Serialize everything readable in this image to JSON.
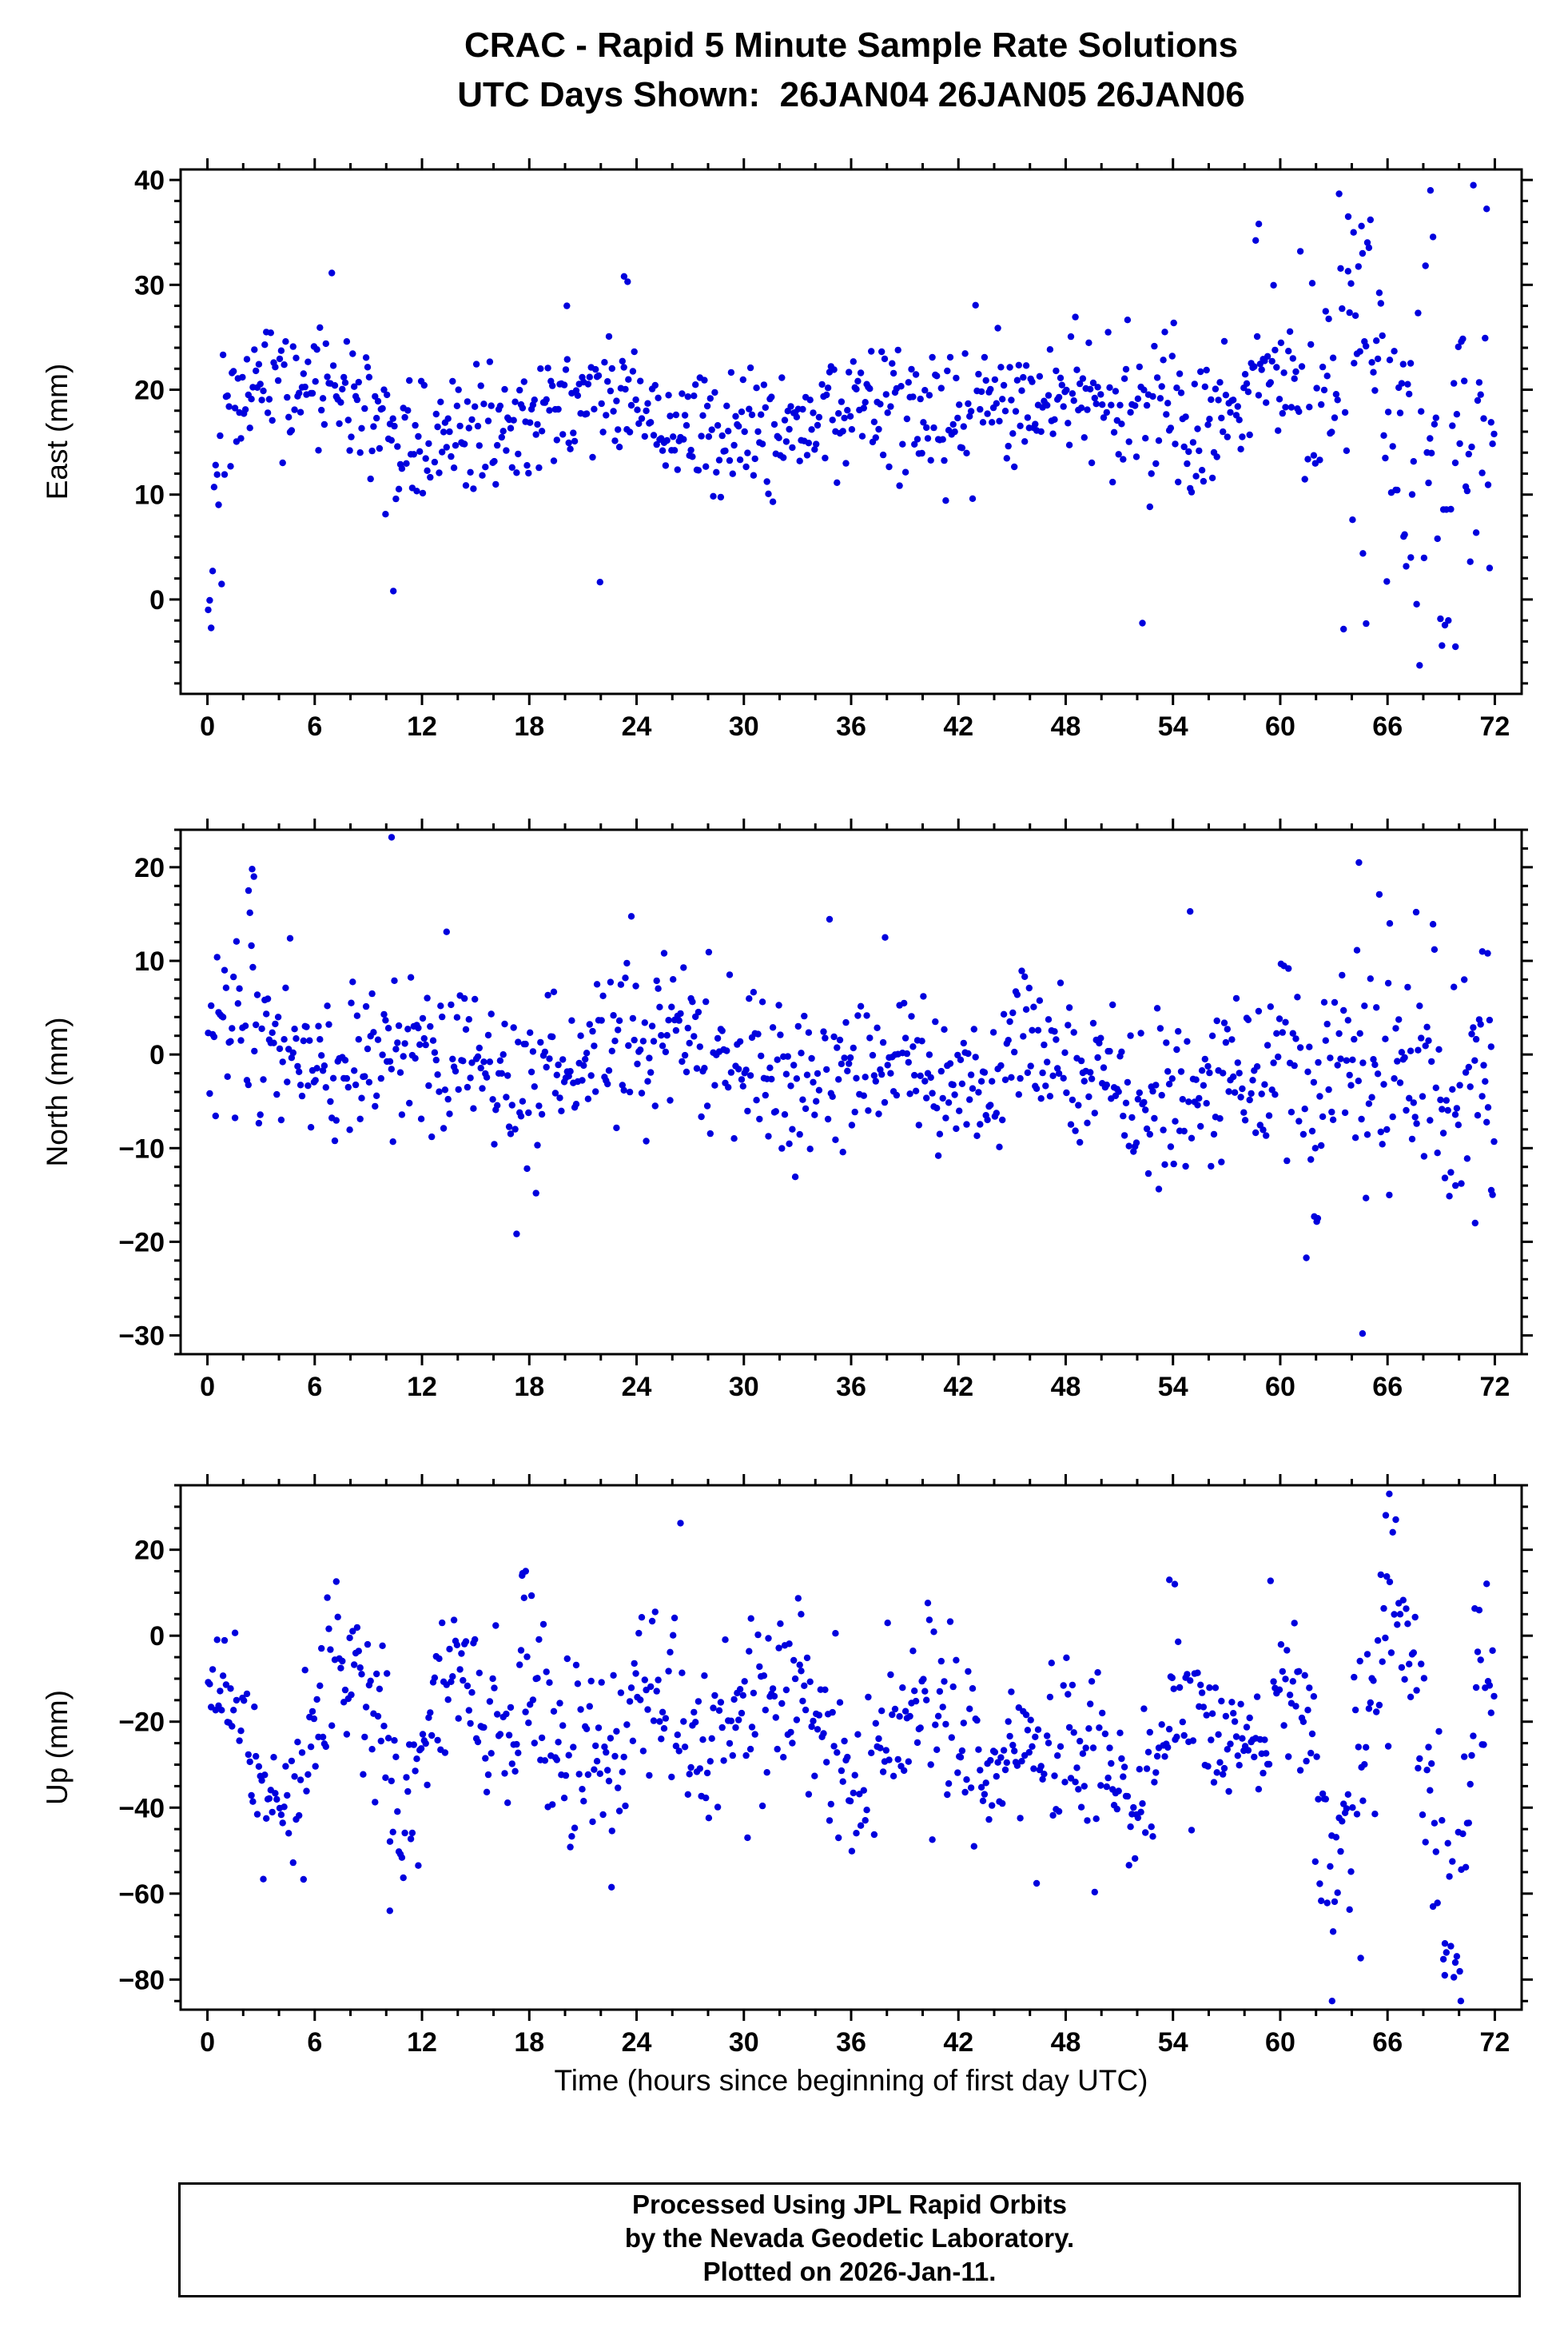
{
  "title": {
    "line1": "CRAC - Rapid 5 Minute Sample Rate Solutions",
    "line2": "UTC Days Shown:  26JAN04 26JAN05 26JAN06"
  },
  "footer": {
    "lines": [
      "Processed Using JPL Rapid Orbits",
      "by the Nevada Geodetic Laboratory.",
      "Plotted on 2026-Jan-11."
    ]
  },
  "chart_data": {
    "type": "scatter",
    "station": "CRAC",
    "utc_days_shown": [
      "26JAN04",
      "26JAN05",
      "26JAN06"
    ],
    "marker": {
      "shape": "circle",
      "color": "#0000dd",
      "radius_px": 4.2
    },
    "x_axis": {
      "label": "Time (hours since beginning of first day UTC)",
      "lim": [
        -1.5,
        73.5
      ],
      "ticks": [
        0,
        6,
        12,
        18,
        24,
        30,
        36,
        42,
        48,
        54,
        60,
        66,
        72
      ],
      "minor_step": 2
    },
    "panels": [
      {
        "id": "east",
        "ylabel": "East (mm)",
        "ylim": [
          -9,
          41
        ],
        "yticks": [
          0,
          10,
          20,
          30,
          40
        ],
        "y_minor_step": 2,
        "seed": 101,
        "n": 864,
        "mean_anchors": [
          [
            0,
            1
          ],
          [
            0.4,
            6
          ],
          [
            0.9,
            13
          ],
          [
            1.6,
            20
          ],
          [
            2.5,
            22
          ],
          [
            4,
            21
          ],
          [
            6,
            21
          ],
          [
            7,
            23
          ],
          [
            8,
            19
          ],
          [
            10,
            15
          ],
          [
            12,
            16
          ],
          [
            14,
            17
          ],
          [
            16,
            16
          ],
          [
            18,
            17
          ],
          [
            20,
            18
          ],
          [
            23,
            19
          ],
          [
            26,
            16
          ],
          [
            28,
            17
          ],
          [
            30,
            17
          ],
          [
            33,
            16
          ],
          [
            36,
            19
          ],
          [
            39,
            17
          ],
          [
            42,
            18
          ],
          [
            45,
            18
          ],
          [
            48,
            19
          ],
          [
            51,
            19
          ],
          [
            54,
            17
          ],
          [
            56,
            16
          ],
          [
            58,
            20
          ],
          [
            59,
            23
          ],
          [
            60,
            20
          ],
          [
            61,
            22
          ],
          [
            62,
            19
          ],
          [
            63,
            21
          ],
          [
            64,
            23
          ],
          [
            65,
            25
          ],
          [
            66,
            19
          ],
          [
            67,
            14
          ],
          [
            68,
            17
          ],
          [
            69,
            11
          ],
          [
            70,
            15
          ],
          [
            71,
            19
          ],
          [
            72,
            17
          ]
        ],
        "sigma_anchors": [
          [
            0,
            3.5
          ],
          [
            1,
            4.5
          ],
          [
            2,
            3.5
          ],
          [
            10,
            3
          ],
          [
            56,
            3.2
          ],
          [
            58,
            4
          ],
          [
            60,
            3.5
          ],
          [
            62,
            4.5
          ],
          [
            63,
            6
          ],
          [
            64,
            8
          ],
          [
            65,
            10
          ],
          [
            67,
            9
          ],
          [
            68,
            11
          ],
          [
            70,
            9
          ],
          [
            72,
            7
          ]
        ],
        "outliers": [
          [
            10.4,
            0.8
          ],
          [
            23.3,
            30.8
          ],
          [
            23.5,
            30.3
          ],
          [
            20.1,
            28
          ],
          [
            58.8,
            35.8
          ],
          [
            63.8,
            36.5
          ],
          [
            64.1,
            35
          ],
          [
            64.6,
            33
          ],
          [
            64.8,
            -2.3
          ],
          [
            68.4,
            39
          ],
          [
            70.8,
            39.5
          ],
          [
            69.4,
            -2
          ],
          [
            69.8,
            -4.5
          ],
          [
            66.9,
            6
          ],
          [
            67.3,
            4
          ]
        ]
      },
      {
        "id": "north",
        "ylabel": "North (mm)",
        "ylim": [
          -32,
          24
        ],
        "yticks": [
          -30,
          -20,
          -10,
          0,
          10,
          20
        ],
        "y_minor_step": 2,
        "seed": 202,
        "n": 864,
        "mean_anchors": [
          [
            0,
            2
          ],
          [
            1,
            4
          ],
          [
            2,
            6
          ],
          [
            3,
            4
          ],
          [
            4,
            1
          ],
          [
            6,
            -1
          ],
          [
            8,
            -2
          ],
          [
            10,
            2
          ],
          [
            12,
            0
          ],
          [
            14,
            3
          ],
          [
            16,
            -3
          ],
          [
            17,
            -5
          ],
          [
            19,
            -2
          ],
          [
            21,
            0
          ],
          [
            23,
            1
          ],
          [
            25,
            2
          ],
          [
            26,
            3
          ],
          [
            28,
            0
          ],
          [
            30,
            -1
          ],
          [
            32,
            -2
          ],
          [
            33,
            -3
          ],
          [
            35,
            -1
          ],
          [
            36,
            -3
          ],
          [
            38,
            -1
          ],
          [
            40,
            -3
          ],
          [
            42,
            -2
          ],
          [
            44,
            -3
          ],
          [
            46,
            1
          ],
          [
            48,
            1
          ],
          [
            50,
            -2
          ],
          [
            52,
            -5
          ],
          [
            54,
            -5
          ],
          [
            56,
            -4
          ],
          [
            58,
            -2
          ],
          [
            60,
            -1
          ],
          [
            62,
            -3
          ],
          [
            63,
            -1
          ],
          [
            65,
            -3
          ],
          [
            67,
            0
          ],
          [
            69,
            -4
          ],
          [
            70,
            -5
          ],
          [
            71,
            -2
          ],
          [
            72,
            -1
          ]
        ],
        "sigma_anchors": [
          [
            0,
            4
          ],
          [
            2,
            6
          ],
          [
            3,
            5
          ],
          [
            4,
            4
          ],
          [
            55,
            4
          ],
          [
            58,
            4.5
          ],
          [
            60,
            5
          ],
          [
            62,
            5.5
          ],
          [
            64,
            6
          ],
          [
            66,
            6.5
          ],
          [
            68,
            6
          ],
          [
            70,
            7
          ],
          [
            72,
            7
          ]
        ],
        "outliers": [
          [
            2.5,
            19.8
          ],
          [
            2.6,
            19
          ],
          [
            2.3,
            17.5
          ],
          [
            10.3,
            23.2
          ],
          [
            37.9,
            12.5
          ],
          [
            64.4,
            20.5
          ],
          [
            64.6,
            -29.8
          ],
          [
            61.9,
            -17.3
          ],
          [
            62.1,
            -17.5
          ],
          [
            66.1,
            -15
          ],
          [
            67.6,
            15.2
          ],
          [
            71.3,
            11
          ],
          [
            71.6,
            10.8
          ],
          [
            70.9,
            -18
          ],
          [
            69.8,
            -14
          ],
          [
            71.8,
            -14.5
          ]
        ]
      },
      {
        "id": "up",
        "ylabel": "Up (mm)",
        "ylim": [
          -87,
          35
        ],
        "yticks": [
          -80,
          -60,
          -40,
          -20,
          0,
          20
        ],
        "y_minor_step": 5,
        "seed": 303,
        "n": 864,
        "mean_anchors": [
          [
            0,
            -8
          ],
          [
            1,
            -12
          ],
          [
            2,
            -25
          ],
          [
            3,
            -35
          ],
          [
            4,
            -38
          ],
          [
            5,
            -30
          ],
          [
            6,
            -18
          ],
          [
            7,
            -8
          ],
          [
            8,
            -12
          ],
          [
            9,
            -8
          ],
          [
            10,
            -25
          ],
          [
            11,
            -42
          ],
          [
            12,
            -25
          ],
          [
            13,
            -15
          ],
          [
            14,
            -10
          ],
          [
            15,
            -20
          ],
          [
            16,
            -28
          ],
          [
            17,
            -22
          ],
          [
            18,
            -12
          ],
          [
            19,
            -20
          ],
          [
            20,
            -25
          ],
          [
            21,
            -30
          ],
          [
            22,
            -32
          ],
          [
            23,
            -25
          ],
          [
            24,
            -15
          ],
          [
            25,
            -12
          ],
          [
            26,
            -18
          ],
          [
            27,
            -25
          ],
          [
            28,
            -22
          ],
          [
            29,
            -18
          ],
          [
            30,
            -25
          ],
          [
            31,
            -15
          ],
          [
            32,
            -12
          ],
          [
            33,
            -15
          ],
          [
            34,
            -25
          ],
          [
            35,
            -30
          ],
          [
            36,
            -32
          ],
          [
            37,
            -28
          ],
          [
            38,
            -22
          ],
          [
            39,
            -18
          ],
          [
            40,
            -15
          ],
          [
            41,
            -18
          ],
          [
            42,
            -22
          ],
          [
            43,
            -28
          ],
          [
            44,
            -30
          ],
          [
            45,
            -25
          ],
          [
            46,
            -28
          ],
          [
            47,
            -32
          ],
          [
            48,
            -30
          ],
          [
            49,
            -28
          ],
          [
            50,
            -25
          ],
          [
            51,
            -35
          ],
          [
            52,
            -42
          ],
          [
            53,
            -30
          ],
          [
            54,
            -15
          ],
          [
            55,
            -10
          ],
          [
            56,
            -20
          ],
          [
            57,
            -25
          ],
          [
            58,
            -28
          ],
          [
            59,
            -25
          ],
          [
            60,
            -15
          ],
          [
            61,
            -12
          ],
          [
            62,
            -35
          ],
          [
            63,
            -55
          ],
          [
            64,
            -40
          ],
          [
            65,
            -15
          ],
          [
            66,
            8
          ],
          [
            66.5,
            15
          ],
          [
            67,
            0
          ],
          [
            68,
            -25
          ],
          [
            69,
            -55
          ],
          [
            69.5,
            -65
          ],
          [
            70,
            -58
          ],
          [
            70.5,
            -40
          ],
          [
            71,
            -10
          ],
          [
            71.5,
            -5
          ],
          [
            72,
            -18
          ]
        ],
        "sigma_anchors": [
          [
            0,
            7
          ],
          [
            2,
            9
          ],
          [
            10,
            10
          ],
          [
            50,
            10
          ],
          [
            58,
            9
          ],
          [
            60,
            8
          ],
          [
            62,
            12
          ],
          [
            64,
            14
          ],
          [
            65,
            12
          ],
          [
            66,
            10
          ],
          [
            67,
            12
          ],
          [
            68,
            14
          ],
          [
            70,
            12
          ],
          [
            71,
            10
          ],
          [
            72,
            10
          ]
        ],
        "outliers": [
          [
            17.8,
            15
          ],
          [
            17.6,
            14
          ],
          [
            10.2,
            -64
          ],
          [
            22.6,
            -58.5
          ],
          [
            30.4,
            4
          ],
          [
            33.2,
            5
          ],
          [
            53.8,
            13
          ],
          [
            54.1,
            12
          ],
          [
            66.1,
            33
          ],
          [
            65.9,
            28
          ],
          [
            62.9,
            -85
          ],
          [
            70.1,
            -85
          ],
          [
            69.2,
            -79
          ],
          [
            64.5,
            -75
          ]
        ]
      }
    ]
  }
}
